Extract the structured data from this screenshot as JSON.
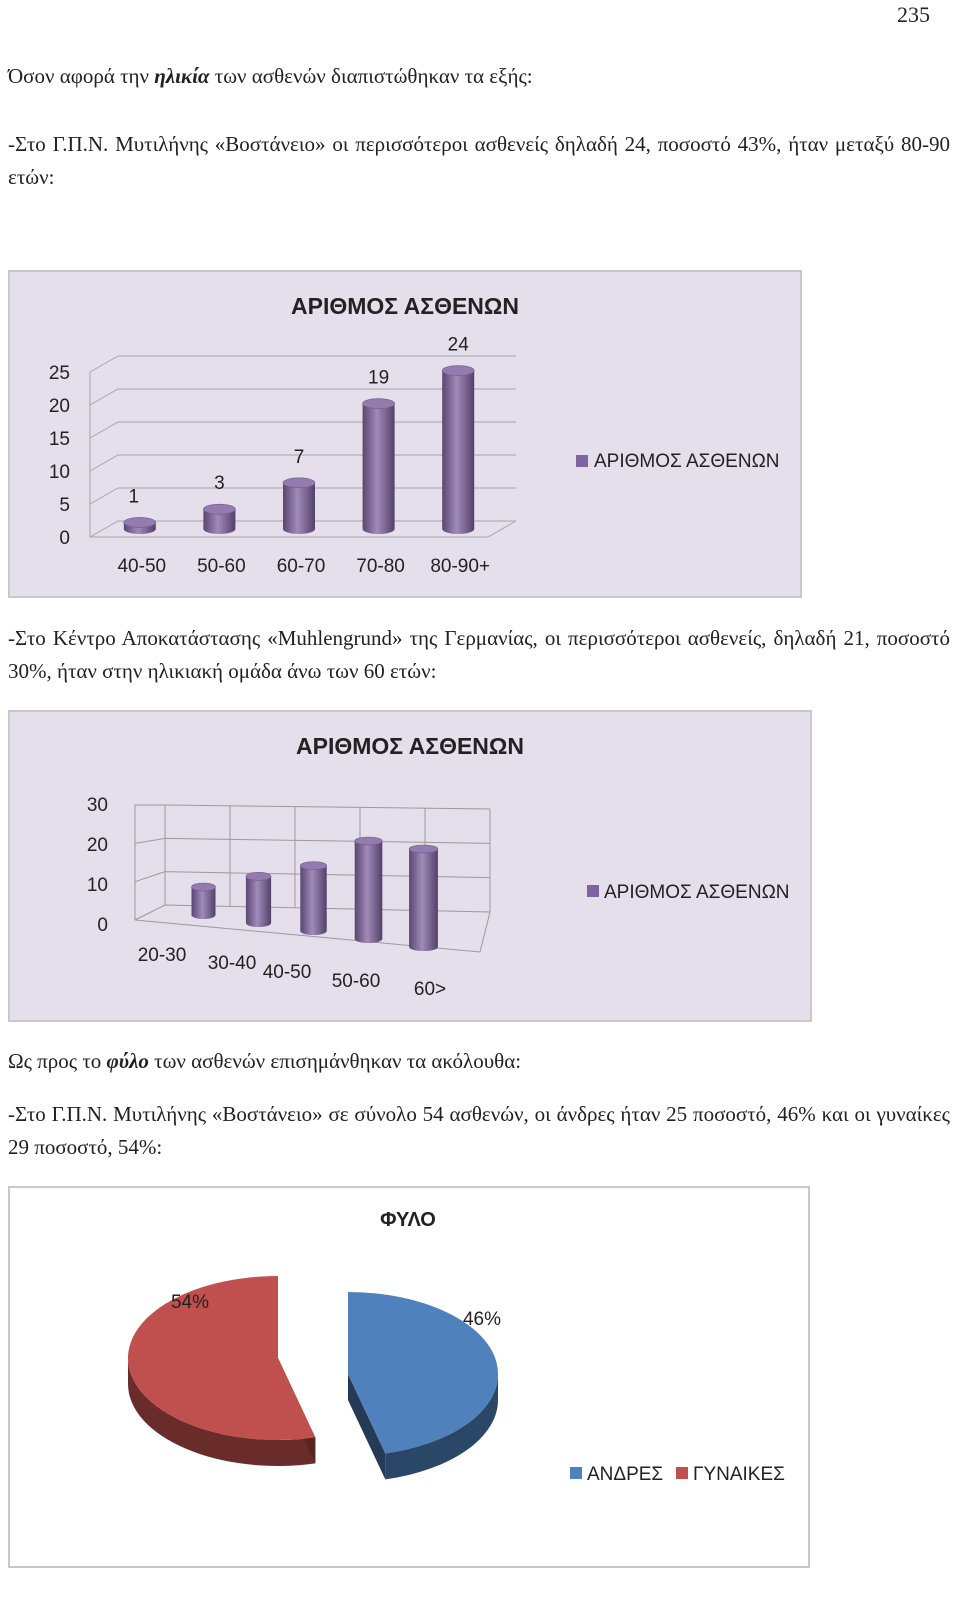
{
  "page_number": "235",
  "text": {
    "age_intro_prefix": "Όσον αφορά την ",
    "age_intro_emph": "ηλικία",
    "age_intro_suffix": " των ασθενών διαπιστώθηκαν τα εξής:",
    "para_vostaneio_age": "-Στο Γ.Π.Ν. Μυτιλήνης «Βοστάνειο» οι περισσότεροι ασθενείς δηλαδή 24, ποσοστό 43%, ήταν μεταξύ 80-90 ετών:",
    "para_muhlengrund_age": "-Στο Κέντρο Αποκατάστασης «Muhlengrund» της Γερμανίας, οι περισσότεροι ασθενείς, δηλαδή 21, ποσοστό 30%, ήταν στην ηλικιακή ομάδα άνω των 60 ετών:",
    "gender_intro_prefix": "Ως προς το ",
    "gender_intro_emph": "φύλο",
    "gender_intro_suffix": " των ασθενών επισημάνθηκαν τα ακόλουθα:",
    "para_vostaneio_gender": "-Στο Γ.Π.Ν. Μυτιλήνης «Βοστάνειο» σε σύνολο 54 ασθενών, οι άνδρες ήταν 25 ποσοστό, 46% και οι γυναίκες 29 ποσοστό, 54%:"
  },
  "chart_data": [
    {
      "type": "bar",
      "title": "ΑΡΙΘΜΟΣ ΑΣΘΕΝΩΝ",
      "categories": [
        "40-50",
        "50-60",
        "60-70",
        "70-80",
        "80-90+"
      ],
      "series": [
        {
          "name": "ΑΡΙΘΜΟΣ ΑΣΘΕΝΩΝ",
          "values": [
            1,
            3,
            7,
            19,
            24
          ]
        }
      ],
      "data_labels": [
        "1",
        "3",
        "7",
        "19",
        "24"
      ],
      "y_ticks": [
        "0",
        "5",
        "10",
        "15",
        "20",
        "25"
      ],
      "ylim": [
        0,
        25
      ],
      "legend": "right",
      "grid": true,
      "colors": {
        "bar": "#8064a2",
        "background": "#e5dfec"
      }
    },
    {
      "type": "bar",
      "title": "ΑΡΙΘΜΟΣ ΑΣΘΕΝΩΝ",
      "categories": [
        "20-30",
        "30-40",
        "40-50",
        "50-60",
        "60>"
      ],
      "series": [
        {
          "name": "ΑΡΙΘΜΟΣ ΑΣΘΕΝΩΝ",
          "values": [
            6,
            10,
            14,
            21,
            21
          ]
        }
      ],
      "y_ticks": [
        "0",
        "10",
        "20",
        "30"
      ],
      "ylim": [
        0,
        30
      ],
      "legend": "right",
      "grid": true,
      "colors": {
        "bar": "#8064a2",
        "background": "#e5dfec"
      }
    },
    {
      "type": "pie",
      "title": "ΦΥΛΟ",
      "categories": [
        "ΑΝΔΡΕΣ",
        "ΓΥΝΑΙΚΕΣ"
      ],
      "values": [
        46,
        54
      ],
      "data_labels": [
        "46%",
        "54%"
      ],
      "legend": "bottom-right",
      "colors": {
        "ΑΝΔΡΕΣ": "#4f81bd",
        "ΓΥΝΑΙΚΕΣ": "#c0504d"
      }
    }
  ]
}
